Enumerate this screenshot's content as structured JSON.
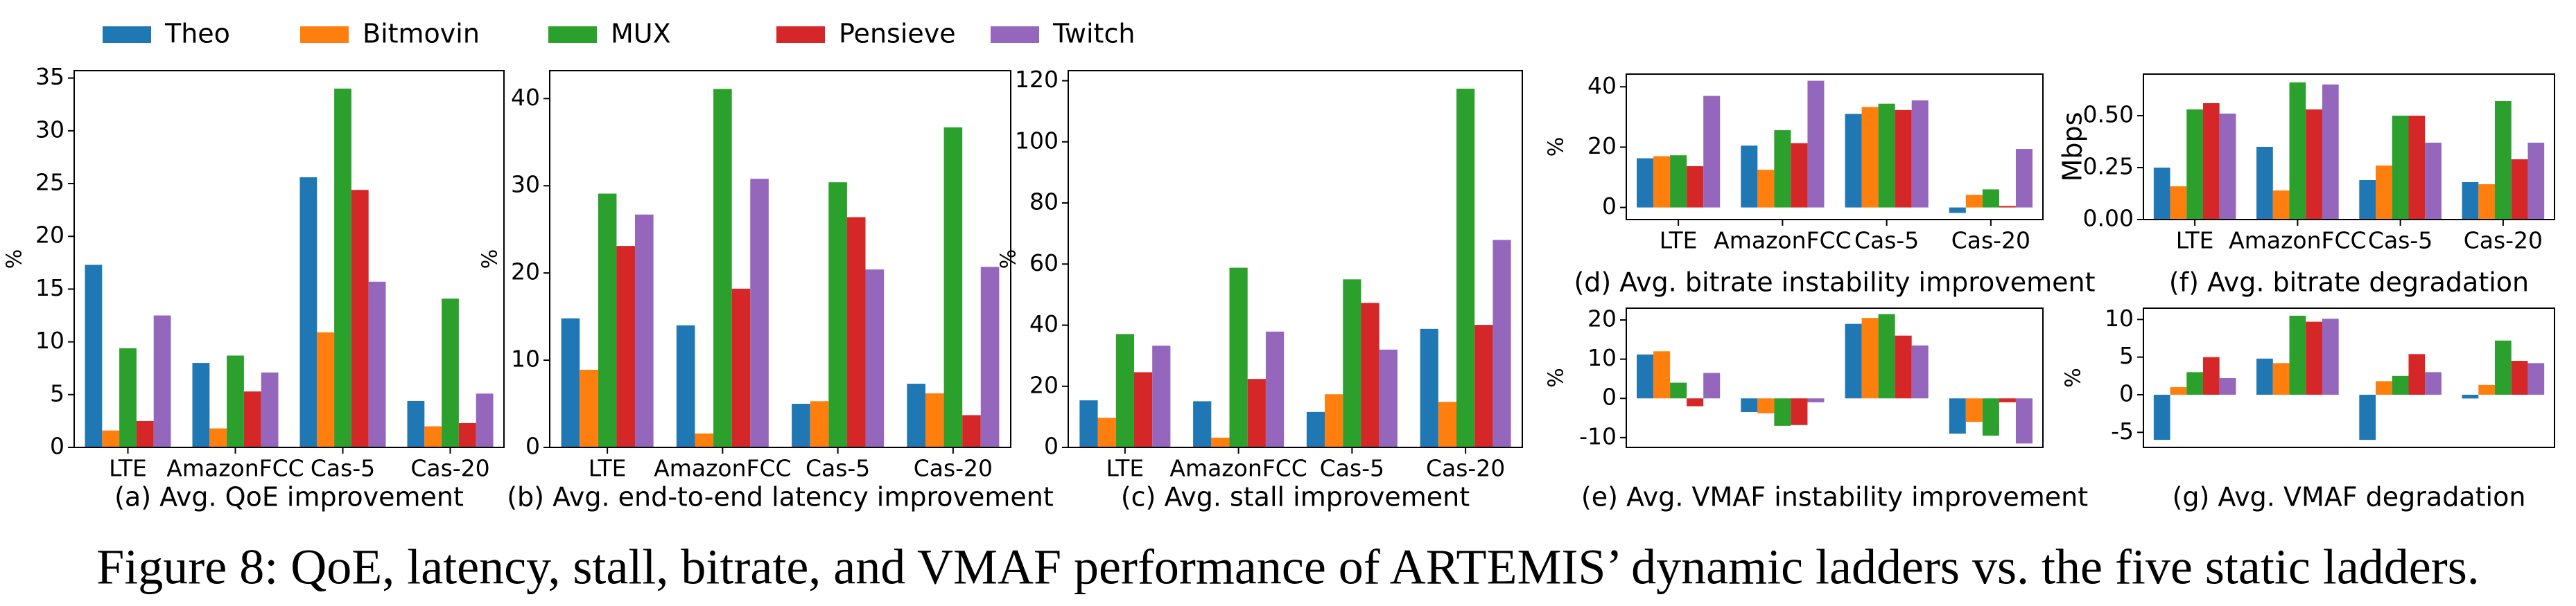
{
  "chart_data": [
    {
      "type": "bar",
      "title": "(a) Avg. QoE improvement",
      "ylabel": "%",
      "categories": [
        "LTE",
        "AmazonFCC",
        "Cas-5",
        "Cas-20"
      ],
      "series": [
        {
          "name": "Theo",
          "color": "#1f77b4",
          "values": [
            17.3,
            8.0,
            25.6,
            4.4
          ]
        },
        {
          "name": "Bitmovin",
          "color": "#ff7f0e",
          "values": [
            1.6,
            1.8,
            10.9,
            2.0
          ]
        },
        {
          "name": "MUX",
          "color": "#2ca02c",
          "values": [
            9.4,
            8.7,
            34.0,
            14.1
          ]
        },
        {
          "name": "Pensieve",
          "color": "#d62728",
          "values": [
            2.5,
            5.3,
            24.4,
            2.3
          ]
        },
        {
          "name": "Twitch",
          "color": "#9467bd",
          "values": [
            12.5,
            7.1,
            15.7,
            5.1
          ]
        }
      ],
      "ylim": [
        0,
        35.7
      ],
      "yticks": [
        0,
        5,
        10,
        15,
        20,
        25,
        30,
        35
      ]
    },
    {
      "type": "bar",
      "title": "(b) Avg. end-to-end latency improvement",
      "ylabel": "%",
      "categories": [
        "LTE",
        "AmazonFCC",
        "Cas-5",
        "Cas-20"
      ],
      "series": [
        {
          "name": "Theo",
          "color": "#1f77b4",
          "values": [
            14.8,
            14.0,
            5.0,
            7.3
          ]
        },
        {
          "name": "Bitmovin",
          "color": "#ff7f0e",
          "values": [
            8.9,
            1.6,
            5.3,
            6.2
          ]
        },
        {
          "name": "MUX",
          "color": "#2ca02c",
          "values": [
            29.1,
            41.1,
            30.4,
            36.7
          ]
        },
        {
          "name": "Pensieve",
          "color": "#d62728",
          "values": [
            23.1,
            18.2,
            26.4,
            3.7
          ]
        },
        {
          "name": "Twitch",
          "color": "#9467bd",
          "values": [
            26.7,
            30.8,
            20.4,
            20.7
          ]
        }
      ],
      "ylim": [
        0,
        43.2
      ],
      "yticks": [
        0,
        10,
        20,
        30,
        40
      ]
    },
    {
      "type": "bar",
      "title": "(c) Avg. stall improvement",
      "ylabel": "%",
      "categories": [
        "LTE",
        "AmazonFCC",
        "Cas-5",
        "Cas-20"
      ],
      "series": [
        {
          "name": "Theo",
          "color": "#1f77b4",
          "values": [
            15.4,
            15.1,
            11.6,
            38.8
          ]
        },
        {
          "name": "Bitmovin",
          "color": "#ff7f0e",
          "values": [
            9.7,
            3.2,
            17.4,
            14.9
          ]
        },
        {
          "name": "MUX",
          "color": "#2ca02c",
          "values": [
            37.1,
            58.8,
            55.0,
            117.4
          ]
        },
        {
          "name": "Pensieve",
          "color": "#d62728",
          "values": [
            24.6,
            22.4,
            47.3,
            40.1
          ]
        },
        {
          "name": "Twitch",
          "color": "#9467bd",
          "values": [
            33.3,
            37.9,
            32.0,
            67.9
          ]
        }
      ],
      "ylim": [
        0,
        123.3
      ],
      "yticks": [
        0,
        20,
        40,
        60,
        80,
        100,
        120
      ]
    },
    {
      "type": "bar",
      "title": "(d) Avg. bitrate instability improvement",
      "ylabel": "%",
      "categories": [
        "LTE",
        "AmazonFCC",
        "Cas-5",
        "Cas-20"
      ],
      "series": [
        {
          "name": "Theo",
          "color": "#1f77b4",
          "values": [
            16.3,
            20.5,
            31.0,
            -1.8
          ]
        },
        {
          "name": "Bitmovin",
          "color": "#ff7f0e",
          "values": [
            17.0,
            12.5,
            33.3,
            4.2
          ]
        },
        {
          "name": "MUX",
          "color": "#2ca02c",
          "values": [
            17.3,
            25.6,
            34.4,
            6.0
          ]
        },
        {
          "name": "Pensieve",
          "color": "#d62728",
          "values": [
            13.7,
            21.3,
            32.3,
            0.5
          ]
        },
        {
          "name": "Twitch",
          "color": "#9467bd",
          "values": [
            37.0,
            42.0,
            35.5,
            19.4
          ]
        }
      ],
      "ylim": [
        -4,
        44.2
      ],
      "yticks": [
        0,
        20,
        40
      ]
    },
    {
      "type": "bar",
      "title": "(e) Avg. VMAF instability improvement",
      "ylabel": "%",
      "series": [
        {
          "name": "Theo",
          "color": "#1f77b4",
          "values": [
            11.2,
            -3.5,
            19.0,
            -9.0
          ]
        },
        {
          "name": "Bitmovin",
          "color": "#ff7f0e",
          "values": [
            12.0,
            -3.8,
            20.5,
            -6.0
          ]
        },
        {
          "name": "MUX",
          "color": "#2ca02c",
          "values": [
            4.0,
            -7.0,
            21.5,
            -9.5
          ]
        },
        {
          "name": "Pensieve",
          "color": "#d62728",
          "values": [
            -2.0,
            -6.8,
            16.0,
            -1.0
          ]
        },
        {
          "name": "Twitch",
          "color": "#9467bd",
          "values": [
            6.5,
            -1.0,
            13.5,
            -11.5
          ]
        }
      ],
      "ylim": [
        -12.5,
        23
      ],
      "yticks": [
        -10,
        0,
        10,
        20
      ]
    },
    {
      "type": "bar",
      "title": "(f) Avg. bitrate degradation",
      "ylabel": "Mbps",
      "categories": [
        "LTE",
        "AmazonFCC",
        "Cas-5",
        "Cas-20"
      ],
      "series": [
        {
          "name": "Theo",
          "color": "#1f77b4",
          "values": [
            0.25,
            0.35,
            0.19,
            0.18
          ]
        },
        {
          "name": "Bitmovin",
          "color": "#ff7f0e",
          "values": [
            0.16,
            0.14,
            0.26,
            0.17
          ]
        },
        {
          "name": "MUX",
          "color": "#2ca02c",
          "values": [
            0.53,
            0.66,
            0.5,
            0.57
          ]
        },
        {
          "name": "Pensieve",
          "color": "#d62728",
          "values": [
            0.56,
            0.53,
            0.5,
            0.29
          ]
        },
        {
          "name": "Twitch",
          "color": "#9467bd",
          "values": [
            0.51,
            0.65,
            0.37,
            0.37
          ]
        }
      ],
      "ylim": [
        0,
        0.7
      ],
      "yticks": [
        {
          "value": 0,
          "label": "0.00"
        },
        {
          "value": 0.25,
          "label": "0.25"
        },
        {
          "value": 0.5,
          "label": "0.50"
        }
      ]
    },
    {
      "type": "bar",
      "title": "(g) Avg. VMAF degradation",
      "ylabel": "%",
      "series": [
        {
          "name": "Theo",
          "color": "#1f77b4",
          "values": [
            -6.0,
            4.8,
            -6.0,
            -0.5
          ]
        },
        {
          "name": "Bitmovin",
          "color": "#ff7f0e",
          "values": [
            1.0,
            4.2,
            1.8,
            1.3
          ]
        },
        {
          "name": "MUX",
          "color": "#2ca02c",
          "values": [
            3.0,
            10.5,
            2.5,
            7.2
          ]
        },
        {
          "name": "Pensieve",
          "color": "#d62728",
          "values": [
            5.0,
            9.7,
            5.4,
            4.5
          ]
        },
        {
          "name": "Twitch",
          "color": "#9467bd",
          "values": [
            2.2,
            10.1,
            3.0,
            4.2
          ]
        }
      ],
      "ylim": [
        -7,
        11.5
      ],
      "yticks": [
        -5,
        0,
        5,
        10
      ]
    }
  ],
  "caption": "Figure 8: QoE, latency, stall, bitrate, and VMAF performance of ARTEMIS’ dynamic ladders vs. the five static ladders."
}
